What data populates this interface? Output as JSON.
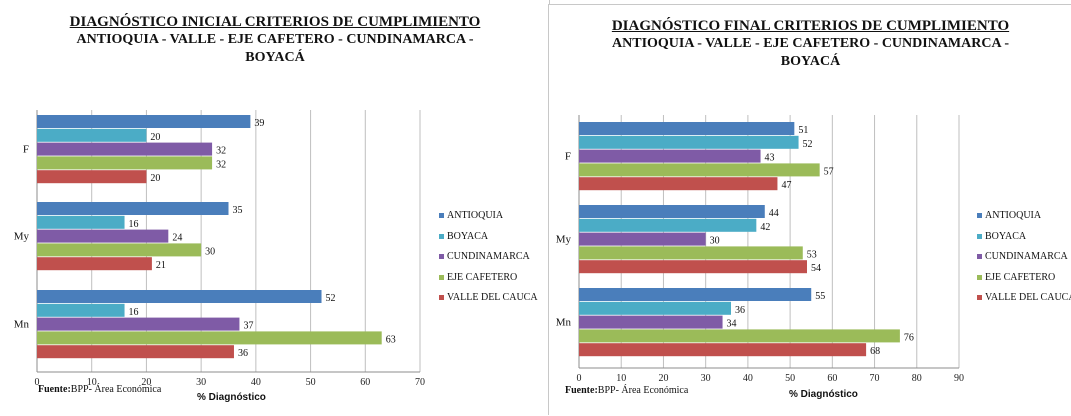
{
  "colors": {
    "ANTIOQUIA": "#4a7ebb",
    "BOYACA": "#4bacc6",
    "CUNDINAMARCA": "#7f5ba6",
    "EJE CAFETERO": "#9bbb59",
    "VALLE DEL CAUCA": "#c0504d"
  },
  "chart_data": [
    {
      "type": "bar",
      "orientation": "horizontal",
      "title": "DIAGNÓSTICO INICIAL CRITERIOS DE CUMPLIMIENTO",
      "subtitle_line1": "ANTIOQUIA - VALLE - EJE CAFETERO - CUNDINAMARCA -",
      "subtitle_line2": "BOYACÁ",
      "categories": [
        "F",
        "My",
        "Mn"
      ],
      "series": [
        {
          "name": "ANTIOQUIA",
          "values": [
            39,
            35,
            52
          ]
        },
        {
          "name": "BOYACA",
          "values": [
            20,
            16,
            16
          ]
        },
        {
          "name": "CUNDINAMARCA",
          "values": [
            32,
            24,
            37
          ]
        },
        {
          "name": "EJE CAFETERO",
          "values": [
            32,
            30,
            63
          ]
        },
        {
          "name": "VALLE DEL CAUCA",
          "values": [
            20,
            21,
            36
          ]
        }
      ],
      "xlabel": "% Diagnóstico",
      "xlim": [
        0,
        70
      ],
      "xticks": [
        0,
        10,
        20,
        30,
        40,
        50,
        60,
        70
      ],
      "grid": true,
      "legend_position": "right",
      "source_label": "Fuente:",
      "source_text": "BPP- Área Económica"
    },
    {
      "type": "bar",
      "orientation": "horizontal",
      "title": "DIAGNÓSTICO FINAL CRITERIOS DE CUMPLIMIENTO",
      "subtitle_line1": "ANTIOQUIA - VALLE - EJE CAFETERO - CUNDINAMARCA -",
      "subtitle_line2": "BOYACÁ",
      "categories": [
        "F",
        "My",
        "Mn"
      ],
      "series": [
        {
          "name": "ANTIOQUIA",
          "values": [
            51,
            44,
            55
          ]
        },
        {
          "name": "BOYACA",
          "values": [
            52,
            42,
            36
          ]
        },
        {
          "name": "CUNDINAMARCA",
          "values": [
            43,
            30,
            34
          ]
        },
        {
          "name": "EJE CAFETERO",
          "values": [
            57,
            53,
            76
          ]
        },
        {
          "name": "VALLE DEL CAUCA",
          "values": [
            47,
            54,
            68
          ]
        }
      ],
      "xlabel": "% Diagnóstico",
      "xlim": [
        0,
        90
      ],
      "xticks": [
        0,
        10,
        20,
        30,
        40,
        50,
        60,
        70,
        80,
        90
      ],
      "grid": true,
      "legend_position": "right",
      "source_label": "Fuente:",
      "source_text": "BPP- Área Económica"
    }
  ]
}
